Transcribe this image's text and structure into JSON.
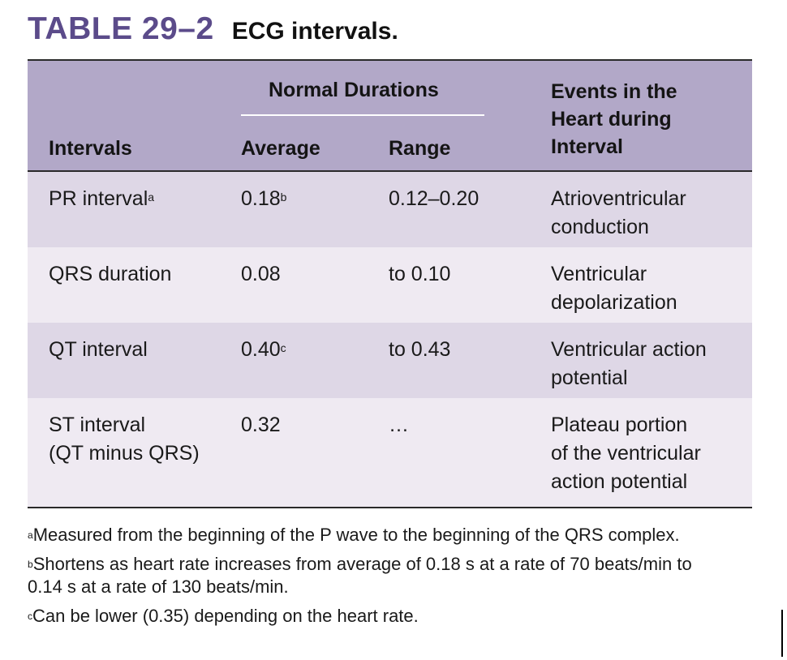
{
  "caption": {
    "label": "TABLE 29–2",
    "title": "ECG intervals."
  },
  "colors": {
    "label": "#5b4b8a",
    "header_bg": "#b2a8c8",
    "row_dark": "#ded7e6",
    "row_light": "#efeaf2"
  },
  "header": {
    "col1": "Intervals",
    "group": "Normal Durations",
    "col2": "Average",
    "col3": "Range",
    "col4": [
      "Events in the",
      "Heart during",
      "Interval"
    ]
  },
  "rows": [
    {
      "interval": [
        "PR interval"
      ],
      "interval_sup": "a",
      "average": "0.18",
      "average_sup": "b",
      "range": "0.12–0.20",
      "events": [
        "Atrioventricular",
        "conduction"
      ]
    },
    {
      "interval": [
        "QRS duration"
      ],
      "interval_sup": "",
      "average": "0.08",
      "average_sup": "",
      "range": "to 0.10",
      "events": [
        "Ventricular",
        "depolarization"
      ]
    },
    {
      "interval": [
        "QT interval"
      ],
      "interval_sup": "",
      "average": "0.40",
      "average_sup": "c",
      "range": "to 0.43",
      "events": [
        "Ventricular action",
        "potential"
      ]
    },
    {
      "interval": [
        "ST interval",
        "(QT minus QRS)"
      ],
      "interval_sup": "",
      "average": "0.32",
      "average_sup": "",
      "range": "…",
      "events": [
        "Plateau portion",
        "of the ventricular",
        "action potential"
      ]
    }
  ],
  "footnotes": [
    {
      "mark": "a",
      "lines": [
        "Measured from the beginning of the P wave to the beginning of the QRS complex."
      ]
    },
    {
      "mark": "b",
      "lines": [
        "Shortens as heart rate increases from average of 0.18 s at a rate of 70 beats/min to",
        "0.14 s at a rate of 130 beats/min."
      ]
    },
    {
      "mark": "c",
      "lines": [
        "Can be lower (0.35) depending on the heart rate."
      ]
    }
  ]
}
